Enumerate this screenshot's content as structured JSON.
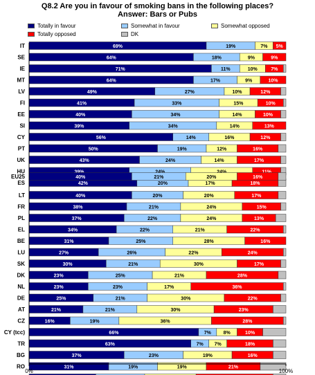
{
  "title_line1": "Q8.2  Are you in favour of smoking bans in the following places?",
  "title_line2": "Answer: Bars or Pubs",
  "colors": {
    "Totally in favour": "#000080",
    "Somewhat in favour": "#99ccff",
    "Somewhat opposed": "#ffff99",
    "Totally opposed": "#ff0000",
    "DK": "#c0c0c0"
  },
  "chart_data": {
    "type": "bar",
    "orientation": "horizontal",
    "stacked": true,
    "xlim": [
      0,
      100
    ],
    "tick_labels": [
      "0%",
      "100%"
    ],
    "legend_position": "top",
    "series_names": [
      "Totally in favour",
      "Somewhat in favour",
      "Somewhat opposed",
      "Totally opposed",
      "DK"
    ],
    "groups": [
      [
        {
          "label": "IT",
          "values": [
            69,
            19,
            7,
            5,
            0
          ]
        },
        {
          "label": "SE",
          "values": [
            64,
            18,
            9,
            9,
            0
          ]
        },
        {
          "label": "IE",
          "values": [
            71,
            11,
            10,
            7,
            1
          ]
        },
        {
          "label": "MT",
          "values": [
            64,
            17,
            9,
            10,
            0
          ]
        },
        {
          "label": "LV",
          "values": [
            49,
            27,
            10,
            12,
            2
          ]
        },
        {
          "label": "FI",
          "values": [
            41,
            33,
            15,
            10,
            1
          ]
        },
        {
          "label": "EE",
          "values": [
            40,
            34,
            14,
            10,
            2
          ]
        },
        {
          "label": "SI",
          "values": [
            39,
            34,
            14,
            13,
            0
          ]
        },
        {
          "label": "CY",
          "values": [
            56,
            14,
            16,
            12,
            2
          ]
        },
        {
          "label": "PT",
          "values": [
            50,
            19,
            12,
            16,
            3
          ]
        },
        {
          "label": "UK",
          "values": [
            43,
            24,
            14,
            17,
            2
          ]
        },
        {
          "label": "HU",
          "values": [
            39,
            24,
            24,
            11,
            2
          ]
        },
        {
          "label": "ES",
          "values": [
            42,
            20,
            17,
            18,
            3
          ]
        }
      ],
      [
        {
          "label": "EU25",
          "values": [
            40,
            21,
            20,
            16,
            3
          ]
        }
      ],
      [
        {
          "label": "LT",
          "values": [
            40,
            20,
            20,
            17,
            3
          ]
        },
        {
          "label": "FR",
          "values": [
            38,
            21,
            24,
            15,
            2
          ]
        },
        {
          "label": "PL",
          "values": [
            37,
            22,
            24,
            13,
            4
          ]
        },
        {
          "label": "EL",
          "values": [
            34,
            22,
            21,
            22,
            1
          ]
        },
        {
          "label": "BE",
          "values": [
            31,
            25,
            28,
            16,
            0
          ]
        },
        {
          "label": "LU",
          "values": [
            27,
            26,
            22,
            24,
            1
          ]
        },
        {
          "label": "SK",
          "values": [
            30,
            21,
            30,
            17,
            2
          ]
        },
        {
          "label": "DK",
          "values": [
            23,
            25,
            21,
            28,
            3
          ]
        },
        {
          "label": "NL",
          "values": [
            23,
            23,
            17,
            36,
            1
          ]
        },
        {
          "label": "DE",
          "values": [
            25,
            21,
            30,
            22,
            2
          ]
        },
        {
          "label": "AT",
          "values": [
            21,
            21,
            30,
            23,
            5
          ]
        },
        {
          "label": "CZ",
          "values": [
            16,
            19,
            36,
            28,
            1
          ]
        }
      ],
      [
        {
          "label": "CY (tcc)",
          "values": [
            66,
            7,
            8,
            10,
            9
          ]
        },
        {
          "label": "TR",
          "values": [
            63,
            7,
            7,
            18,
            5
          ]
        },
        {
          "label": "BG",
          "values": [
            37,
            23,
            19,
            16,
            5
          ]
        },
        {
          "label": "RO",
          "values": [
            31,
            19,
            19,
            21,
            10
          ]
        },
        {
          "label": "HR",
          "values": [
            26,
            19,
            20,
            30,
            5
          ]
        }
      ]
    ]
  }
}
